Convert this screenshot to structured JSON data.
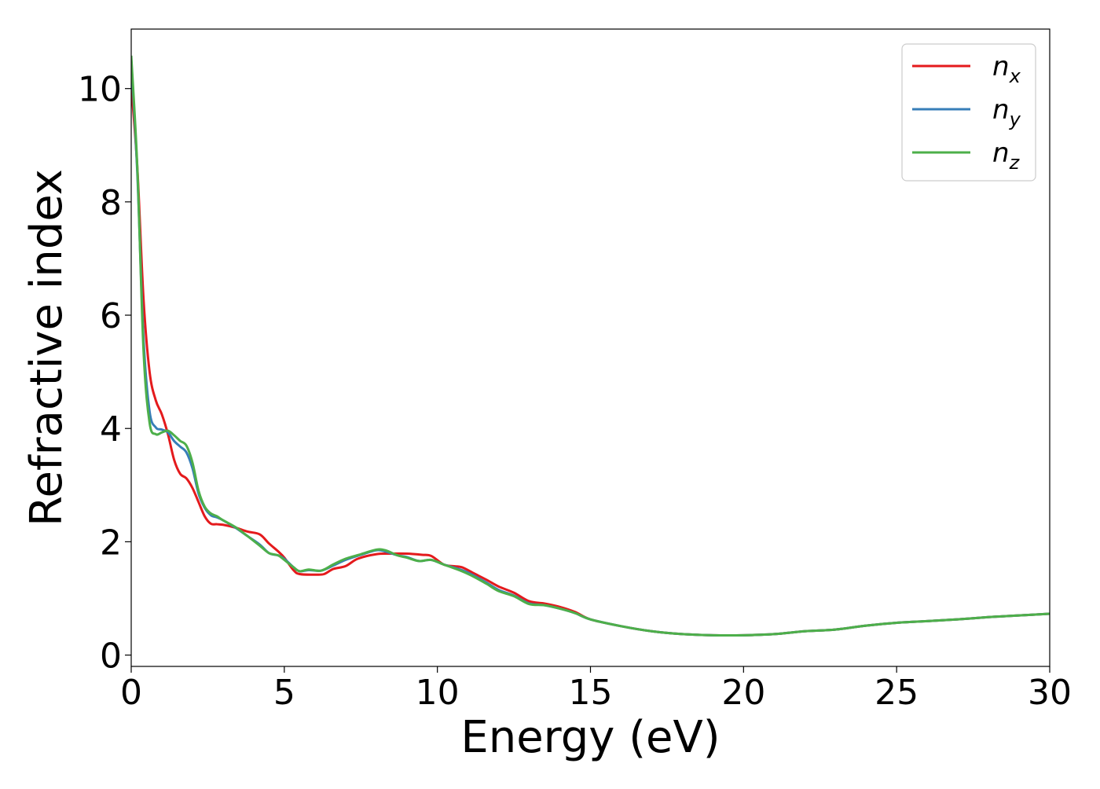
{
  "chart_data": {
    "type": "line",
    "title": "",
    "xlabel": "Energy (eV)",
    "ylabel": "Refractive index",
    "xlim": [
      0,
      30
    ],
    "ylim": [
      -0.2,
      11.05
    ],
    "xticks": [
      0,
      5,
      10,
      15,
      20,
      25,
      30
    ],
    "yticks": [
      0,
      2,
      4,
      6,
      8,
      10
    ],
    "grid": false,
    "legend_position": "top-right",
    "series": [
      {
        "name": "n_x",
        "label_base": "n",
        "label_sub": "x",
        "color": "#e41a1c",
        "points": [
          [
            0,
            10.05
          ],
          [
            0.2,
            8.6
          ],
          [
            0.4,
            6.3
          ],
          [
            0.6,
            5.0
          ],
          [
            0.8,
            4.5
          ],
          [
            1.0,
            4.25
          ],
          [
            1.2,
            3.9
          ],
          [
            1.4,
            3.45
          ],
          [
            1.6,
            3.2
          ],
          [
            1.8,
            3.12
          ],
          [
            2.0,
            2.95
          ],
          [
            2.2,
            2.7
          ],
          [
            2.4,
            2.45
          ],
          [
            2.6,
            2.32
          ],
          [
            2.8,
            2.31
          ],
          [
            3.0,
            2.3
          ],
          [
            3.4,
            2.25
          ],
          [
            3.8,
            2.18
          ],
          [
            4.2,
            2.13
          ],
          [
            4.5,
            1.97
          ],
          [
            4.8,
            1.83
          ],
          [
            5.0,
            1.72
          ],
          [
            5.3,
            1.5
          ],
          [
            5.5,
            1.43
          ],
          [
            6.0,
            1.42
          ],
          [
            6.3,
            1.43
          ],
          [
            6.6,
            1.52
          ],
          [
            7.0,
            1.57
          ],
          [
            7.4,
            1.7
          ],
          [
            8.0,
            1.78
          ],
          [
            8.5,
            1.79
          ],
          [
            9.0,
            1.79
          ],
          [
            9.5,
            1.77
          ],
          [
            9.8,
            1.75
          ],
          [
            10.2,
            1.6
          ],
          [
            10.5,
            1.57
          ],
          [
            10.8,
            1.55
          ],
          [
            11.2,
            1.44
          ],
          [
            11.6,
            1.33
          ],
          [
            12.0,
            1.21
          ],
          [
            12.5,
            1.1
          ],
          [
            13.0,
            0.95
          ],
          [
            13.5,
            0.91
          ],
          [
            14.0,
            0.85
          ],
          [
            14.5,
            0.76
          ],
          [
            15.0,
            0.63
          ],
          [
            16.0,
            0.51
          ],
          [
            17.0,
            0.42
          ],
          [
            18.0,
            0.37
          ],
          [
            19.0,
            0.35
          ],
          [
            20.0,
            0.35
          ],
          [
            21.0,
            0.37
          ],
          [
            22.0,
            0.42
          ],
          [
            23.0,
            0.45
          ],
          [
            24.0,
            0.52
          ],
          [
            25.0,
            0.57
          ],
          [
            26.0,
            0.6
          ],
          [
            27.0,
            0.63
          ],
          [
            28.0,
            0.67
          ],
          [
            29.0,
            0.7
          ],
          [
            30.0,
            0.73
          ]
        ]
      },
      {
        "name": "n_y",
        "label_base": "n",
        "label_sub": "y",
        "color": "#377eb8",
        "points": [
          [
            0,
            10.5
          ],
          [
            0.2,
            8.5
          ],
          [
            0.4,
            5.6
          ],
          [
            0.6,
            4.3
          ],
          [
            0.8,
            4.02
          ],
          [
            1.0,
            3.98
          ],
          [
            1.2,
            3.93
          ],
          [
            1.4,
            3.78
          ],
          [
            1.6,
            3.68
          ],
          [
            1.8,
            3.58
          ],
          [
            2.0,
            3.3
          ],
          [
            2.2,
            2.85
          ],
          [
            2.4,
            2.6
          ],
          [
            2.6,
            2.47
          ],
          [
            2.8,
            2.43
          ],
          [
            3.0,
            2.38
          ],
          [
            3.4,
            2.25
          ],
          [
            3.8,
            2.1
          ],
          [
            4.2,
            1.95
          ],
          [
            4.5,
            1.8
          ],
          [
            4.8,
            1.76
          ],
          [
            5.0,
            1.7
          ],
          [
            5.3,
            1.55
          ],
          [
            5.5,
            1.48
          ],
          [
            5.8,
            1.5
          ],
          [
            6.2,
            1.49
          ],
          [
            6.6,
            1.58
          ],
          [
            7.0,
            1.68
          ],
          [
            7.5,
            1.77
          ],
          [
            8.0,
            1.85
          ],
          [
            8.3,
            1.83
          ],
          [
            8.7,
            1.76
          ],
          [
            9.0,
            1.73
          ],
          [
            9.4,
            1.66
          ],
          [
            9.8,
            1.68
          ],
          [
            10.2,
            1.6
          ],
          [
            10.8,
            1.5
          ],
          [
            11.2,
            1.4
          ],
          [
            11.6,
            1.28
          ],
          [
            12.0,
            1.15
          ],
          [
            12.5,
            1.05
          ],
          [
            13.0,
            0.91
          ],
          [
            13.5,
            0.88
          ],
          [
            14.0,
            0.82
          ],
          [
            14.5,
            0.74
          ],
          [
            15.0,
            0.63
          ],
          [
            16.0,
            0.51
          ],
          [
            17.0,
            0.42
          ],
          [
            18.0,
            0.37
          ],
          [
            19.0,
            0.35
          ],
          [
            20.0,
            0.35
          ],
          [
            21.0,
            0.37
          ],
          [
            22.0,
            0.42
          ],
          [
            23.0,
            0.45
          ],
          [
            24.0,
            0.52
          ],
          [
            25.0,
            0.57
          ],
          [
            26.0,
            0.6
          ],
          [
            27.0,
            0.63
          ],
          [
            28.0,
            0.67
          ],
          [
            29.0,
            0.7
          ],
          [
            30.0,
            0.73
          ]
        ]
      },
      {
        "name": "n_z",
        "label_base": "n",
        "label_sub": "z",
        "color": "#4daf4a",
        "points": [
          [
            0,
            10.58
          ],
          [
            0.2,
            8.6
          ],
          [
            0.4,
            5.4
          ],
          [
            0.6,
            4.1
          ],
          [
            0.8,
            3.9
          ],
          [
            1.0,
            3.93
          ],
          [
            1.2,
            3.96
          ],
          [
            1.4,
            3.88
          ],
          [
            1.6,
            3.78
          ],
          [
            1.8,
            3.7
          ],
          [
            2.0,
            3.4
          ],
          [
            2.2,
            2.9
          ],
          [
            2.4,
            2.62
          ],
          [
            2.6,
            2.5
          ],
          [
            2.8,
            2.45
          ],
          [
            3.0,
            2.38
          ],
          [
            3.4,
            2.26
          ],
          [
            3.8,
            2.1
          ],
          [
            4.2,
            1.93
          ],
          [
            4.5,
            1.8
          ],
          [
            4.8,
            1.76
          ],
          [
            5.0,
            1.68
          ],
          [
            5.3,
            1.55
          ],
          [
            5.5,
            1.48
          ],
          [
            5.8,
            1.51
          ],
          [
            6.2,
            1.49
          ],
          [
            6.6,
            1.6
          ],
          [
            7.0,
            1.7
          ],
          [
            7.5,
            1.78
          ],
          [
            8.0,
            1.86
          ],
          [
            8.3,
            1.85
          ],
          [
            8.7,
            1.76
          ],
          [
            9.0,
            1.72
          ],
          [
            9.4,
            1.66
          ],
          [
            9.8,
            1.68
          ],
          [
            10.2,
            1.6
          ],
          [
            10.8,
            1.48
          ],
          [
            11.2,
            1.38
          ],
          [
            11.6,
            1.26
          ],
          [
            12.0,
            1.13
          ],
          [
            12.5,
            1.04
          ],
          [
            13.0,
            0.9
          ],
          [
            13.5,
            0.88
          ],
          [
            14.0,
            0.82
          ],
          [
            14.5,
            0.74
          ],
          [
            15.0,
            0.63
          ],
          [
            16.0,
            0.51
          ],
          [
            17.0,
            0.42
          ],
          [
            18.0,
            0.37
          ],
          [
            19.0,
            0.35
          ],
          [
            20.0,
            0.35
          ],
          [
            21.0,
            0.37
          ],
          [
            22.0,
            0.42
          ],
          [
            23.0,
            0.45
          ],
          [
            24.0,
            0.52
          ],
          [
            25.0,
            0.57
          ],
          [
            26.0,
            0.6
          ],
          [
            27.0,
            0.63
          ],
          [
            28.0,
            0.67
          ],
          [
            29.0,
            0.7
          ],
          [
            30.0,
            0.73
          ]
        ]
      }
    ]
  }
}
